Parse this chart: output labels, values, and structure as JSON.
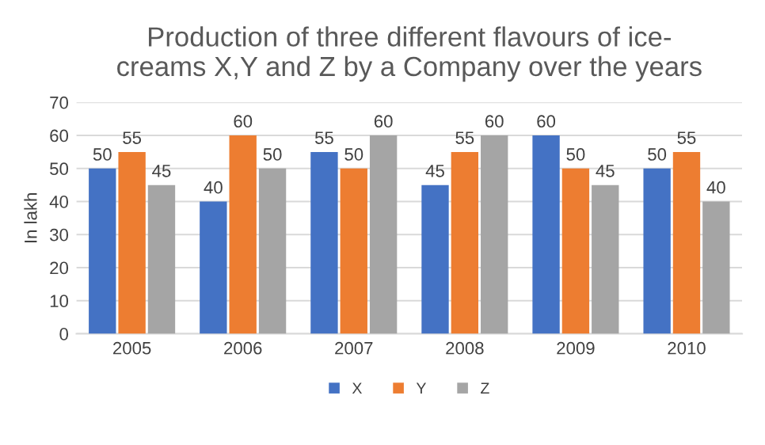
{
  "chart_data": {
    "type": "bar",
    "title": "Production of three different flavours of ice-\ncreams X,Y and Z by a Company over the years",
    "ylabel": "In lakh",
    "categories": [
      "2005",
      "2006",
      "2007",
      "2008",
      "2009",
      "2010"
    ],
    "series": [
      {
        "name": "X",
        "color": "#4472c4",
        "values": [
          50,
          40,
          55,
          45,
          60,
          50
        ]
      },
      {
        "name": "Y",
        "color": "#ed7d31",
        "values": [
          55,
          60,
          50,
          55,
          50,
          55
        ]
      },
      {
        "name": "Z",
        "color": "#a5a5a5",
        "values": [
          45,
          50,
          60,
          60,
          45,
          40
        ]
      }
    ],
    "ylim": [
      0,
      70
    ],
    "yticks": [
      0,
      10,
      20,
      30,
      40,
      50,
      60,
      70
    ],
    "grid": "y",
    "legend": "bottom",
    "data_labels": true
  }
}
